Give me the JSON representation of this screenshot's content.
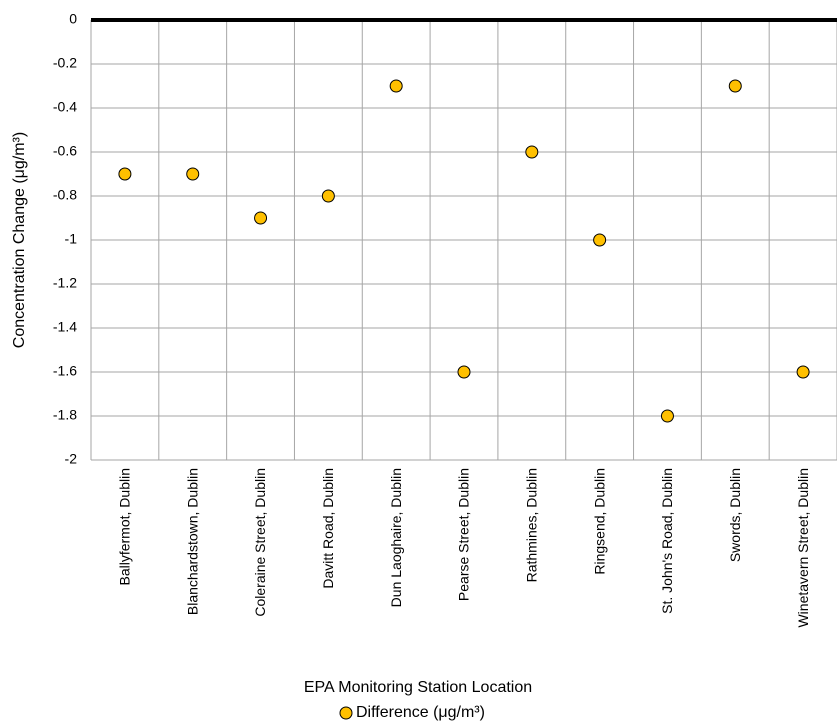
{
  "chart_data": {
    "type": "scatter",
    "categories": [
      "Ballyfermot, Dublin",
      "Blanchardstown, Dublin",
      "Coleraine Street, Dublin",
      "Davitt Road, Dublin",
      "Dun Laoghaire, Dublin",
      "Pearse Street, Dublin",
      "Rathmines, Dublin",
      "Ringsend, Dublin",
      "St. John's Road, Dublin",
      "Swords, Dublin",
      "Winetavern Street, Dublin"
    ],
    "series": [
      {
        "name": "Difference (μg/m³)",
        "color": "#ffc000",
        "values": [
          -0.7,
          -0.7,
          -0.9,
          -0.8,
          -0.3,
          -1.6,
          -0.6,
          -1.0,
          -1.8,
          -0.3,
          -1.6
        ]
      }
    ],
    "x_label": "EPA Monitoring Station Location",
    "y_label": "Concentration Change (μg/m³)",
    "ylim": [
      -2,
      0
    ],
    "yticks": [
      0,
      -0.2,
      -0.4,
      -0.6,
      -0.8,
      -1,
      -1.2,
      -1.4,
      -1.6,
      -1.8,
      -2
    ],
    "grid": true
  }
}
